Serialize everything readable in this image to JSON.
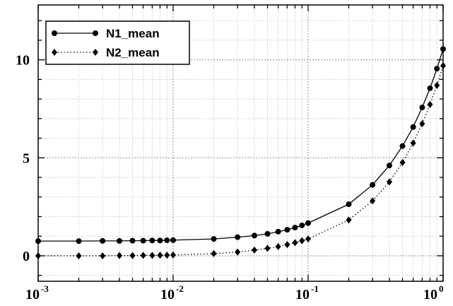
{
  "chart_data": {
    "type": "line",
    "title": "",
    "xlabel": "",
    "ylabel": "",
    "x_scale": "log",
    "xlim": [
      0.001,
      1
    ],
    "ylim": [
      -1.3,
      12.8
    ],
    "grid": true,
    "legend_position": "top-left",
    "x_ticks": [
      {
        "value": 0.001,
        "base": "10",
        "exp": "-3"
      },
      {
        "value": 0.01,
        "base": "10",
        "exp": "-2"
      },
      {
        "value": 0.1,
        "base": "10",
        "exp": "-1"
      },
      {
        "value": 1,
        "base": "10",
        "exp": "0"
      }
    ],
    "y_ticks": [
      {
        "value": 0,
        "label": "0"
      },
      {
        "value": 5,
        "label": "5"
      },
      {
        "value": 10,
        "label": "10"
      }
    ],
    "x": [
      0.001,
      0.002,
      0.003,
      0.004,
      0.005,
      0.006,
      0.007,
      0.008,
      0.009,
      0.01,
      0.02,
      0.03,
      0.04,
      0.05,
      0.06,
      0.07,
      0.08,
      0.09,
      0.1,
      0.2,
      0.3,
      0.4,
      0.5,
      0.6,
      0.7,
      0.8,
      0.9,
      1.0
    ],
    "series": [
      {
        "name": "N1_mean",
        "marker": "circle",
        "line": "solid",
        "values": [
          0.75,
          0.75,
          0.76,
          0.76,
          0.77,
          0.77,
          0.78,
          0.78,
          0.79,
          0.8,
          0.86,
          0.95,
          1.03,
          1.12,
          1.23,
          1.33,
          1.44,
          1.55,
          1.67,
          2.63,
          3.62,
          4.61,
          5.6,
          6.57,
          7.57,
          8.55,
          9.55,
          10.55
        ]
      },
      {
        "name": "N2_mean",
        "marker": "diamond",
        "line": "dotted",
        "values": [
          0.0,
          0.0,
          0.0,
          0.01,
          0.01,
          0.02,
          0.02,
          0.03,
          0.03,
          0.04,
          0.11,
          0.19,
          0.29,
          0.38,
          0.47,
          0.57,
          0.67,
          0.77,
          0.86,
          1.83,
          2.8,
          3.77,
          4.76,
          5.75,
          6.74,
          7.72,
          8.7,
          9.7
        ]
      }
    ]
  }
}
